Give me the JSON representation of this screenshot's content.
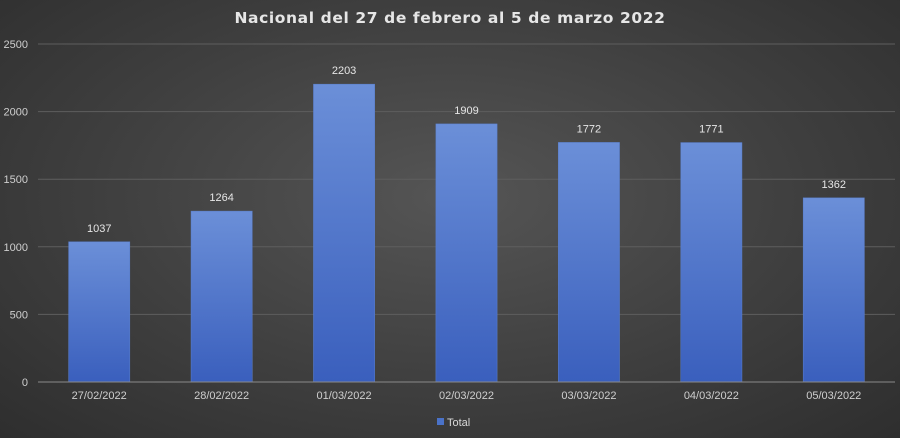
{
  "chart_data": {
    "type": "bar",
    "title": "Nacional del 27 de febrero al 5 de marzo 2022",
    "xlabel": "",
    "ylabel": "",
    "categories": [
      "27/02/2022",
      "28/02/2022",
      "01/03/2022",
      "02/03/2022",
      "03/03/2022",
      "04/03/2022",
      "05/03/2022"
    ],
    "series": [
      {
        "name": "Total",
        "color": "#4a72c8",
        "values": [
          1037,
          1264,
          2203,
          1909,
          1772,
          1771,
          1362
        ]
      }
    ],
    "ylim": [
      0,
      2500
    ],
    "yticks": [
      0,
      500,
      1000,
      1500,
      2000,
      2500
    ],
    "grid": true,
    "legend_position": "bottom",
    "data_labels": true
  }
}
